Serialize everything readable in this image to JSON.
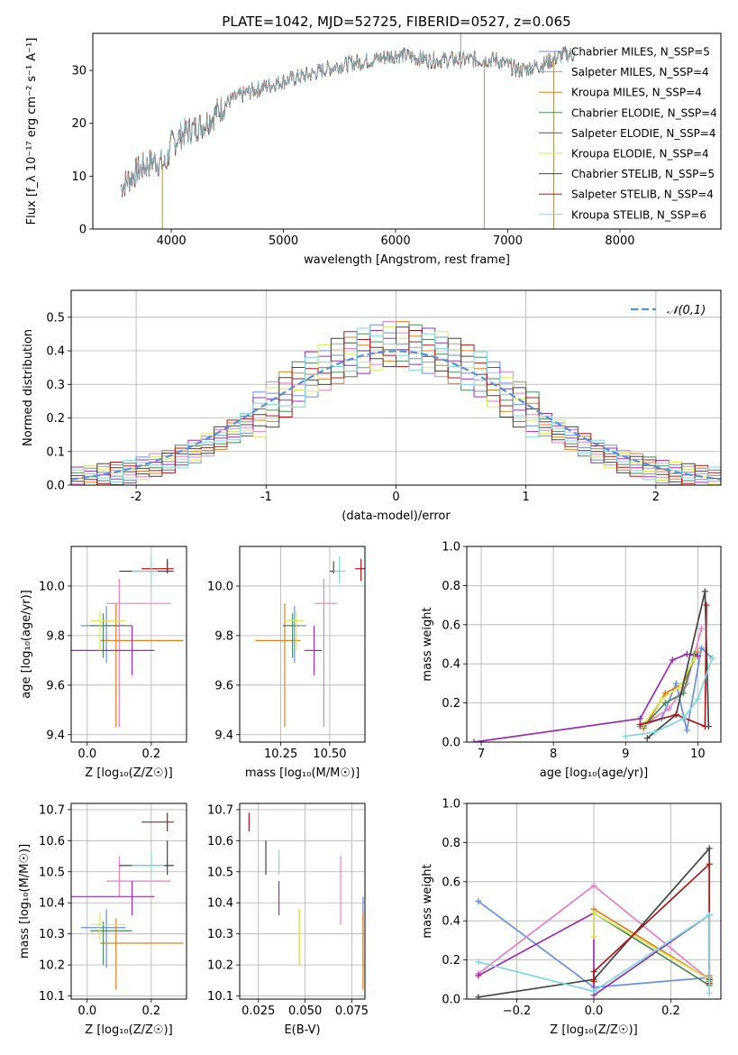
{
  "figure": {
    "title": "PLATE=1042, MJD=52725, FIBERID=0527, z=0.065"
  },
  "colors": {
    "Chabrier MILES": "#6b8fe0",
    "Salpeter MILES": "#e67fc4",
    "Kroupa MILES": "#e0801a",
    "Chabrier ELODIE": "#4a8a5a",
    "Salpeter ELODIE": "#9a2db0",
    "Kroupa ELODIE": "#d8ea5a",
    "Chabrier STELIB": "#444444",
    "Salpeter STELIB": "#b01818",
    "Kroupa STELIB": "#7fd6e0",
    "normal": "#5b8fd8"
  },
  "chart_data": [
    {
      "id": "spectrum",
      "type": "line",
      "xlabel": "wavelength [Angstrom, rest frame]",
      "ylabel": "Flux [f_λ 10⁻¹⁷ erg cm⁻² s⁻¹ A⁻¹]",
      "xlim": [
        3300,
        8900
      ],
      "ylim": [
        0,
        37
      ],
      "xticks": [
        "4000",
        "5000",
        "6000",
        "7000",
        "8000"
      ],
      "yticks": [
        "0",
        "10",
        "20",
        "30"
      ],
      "legend_position": "right",
      "legend": [
        "Chabrier MILES, N_SSP=5",
        "Salpeter MILES, N_SSP=4",
        "Kroupa MILES, N_SSP=4",
        "Chabrier ELODIE, N_SSP=4",
        "Salpeter ELODIE, N_SSP=4",
        "Kroupa ELODIE, N_SSP=4",
        "Chabrier STELIB, N_SSP=5",
        "Salpeter STELIB, N_SSP=4",
        "Kroupa STELIB, N_SSP=6"
      ],
      "continuum": {
        "x": [
          3550,
          3700,
          3850,
          3950,
          4000,
          4100,
          4300,
          4500,
          4700,
          5000,
          5200,
          5500,
          5800,
          6000,
          6300,
          6600,
          6900,
          7100,
          7300,
          7500,
          7600
        ],
        "y": [
          8,
          11,
          13,
          12,
          16,
          18,
          20,
          24,
          26,
          28,
          29,
          31,
          32,
          33,
          32,
          32,
          32,
          30,
          31,
          33,
          33
        ]
      },
      "spikes": [
        {
          "x": 3920,
          "y": 0
        },
        {
          "x": 6790,
          "y": 0
        },
        {
          "x": 7410,
          "y": 0
        },
        {
          "x": 6580,
          "y": 37
        }
      ]
    },
    {
      "id": "residuals",
      "type": "histogram",
      "xlabel": "(data-model)/error",
      "ylabel": "Normed distribution",
      "xlim": [
        -2.5,
        2.5
      ],
      "ylim": [
        0,
        0.58
      ],
      "xticks": [
        -2,
        -1,
        0,
        1,
        2
      ],
      "yticks": [
        0.0,
        0.1,
        0.2,
        0.3,
        0.4,
        0.5
      ],
      "grid": true,
      "legend": [
        "𝒩(0,1)"
      ],
      "legend_position": "upper right",
      "bin_width": 0.1,
      "bin_start": -2.5,
      "envelope": [
        0.02,
        0.025,
        0.03,
        0.035,
        0.04,
        0.05,
        0.06,
        0.07,
        0.085,
        0.1,
        0.12,
        0.14,
        0.16,
        0.18,
        0.21,
        0.24,
        0.27,
        0.3,
        0.33,
        0.35,
        0.37,
        0.39,
        0.4,
        0.41,
        0.42,
        0.42,
        0.41,
        0.4,
        0.39,
        0.37,
        0.35,
        0.33,
        0.3,
        0.27,
        0.24,
        0.21,
        0.18,
        0.16,
        0.14,
        0.12,
        0.1,
        0.085,
        0.07,
        0.06,
        0.05,
        0.04,
        0.035,
        0.03,
        0.025,
        0.02
      ]
    },
    {
      "id": "age_vs_Z",
      "type": "errorbar",
      "xlabel": "Z [log₁₀(Z/Z☉)]",
      "ylabel": "age  [log₁₀(age/yr)]",
      "xlim": [
        -0.05,
        0.31
      ],
      "ylim": [
        9.37,
        10.16
      ],
      "xticks": [
        "0.0",
        "0.2"
      ],
      "yticks": [
        "9.4",
        "9.6",
        "9.8",
        "10.0"
      ],
      "grid": true,
      "points": [
        {
          "m": "Chabrier MILES",
          "x": 0.06,
          "y": 9.84,
          "xe": [
            0.08,
            0.06
          ],
          "ye": [
            0.15,
            0.08
          ]
        },
        {
          "m": "Salpeter MILES",
          "x": 0.1,
          "y": 9.93,
          "xe": [
            0.04,
            0.16
          ],
          "ye": [
            0.5,
            0.1
          ]
        },
        {
          "m": "Kroupa MILES",
          "x": 0.09,
          "y": 9.78,
          "xe": [
            0.05,
            0.21
          ],
          "ye": [
            0.35,
            0.15
          ]
        },
        {
          "m": "Chabrier ELODIE",
          "x": 0.05,
          "y": 9.84,
          "xe": [
            0.04,
            0.09
          ],
          "ye": [
            0.13,
            0.05
          ]
        },
        {
          "m": "Salpeter ELODIE",
          "x": 0.14,
          "y": 9.74,
          "xe": [
            0.19,
            0.07
          ],
          "ye": [
            0.1,
            0.1
          ]
        },
        {
          "m": "Kroupa ELODIE",
          "x": 0.04,
          "y": 9.86,
          "xe": [
            0.03,
            0.08
          ],
          "ye": [
            0.12,
            0.04
          ]
        },
        {
          "m": "Chabrier STELIB",
          "x": 0.25,
          "y": 10.06,
          "xe": [
            0.15,
            0.02
          ],
          "ye": [
            0.01,
            0.04
          ]
        },
        {
          "m": "Salpeter STELIB",
          "x": 0.25,
          "y": 10.07,
          "xe": [
            0.08,
            0.02
          ],
          "ye": [
            0.01,
            0.04
          ]
        },
        {
          "m": "Kroupa STELIB",
          "x": 0.2,
          "y": 10.06,
          "xe": [
            0.06,
            0.02
          ],
          "ye": [
            0.05,
            0.05
          ]
        }
      ]
    },
    {
      "id": "age_vs_mass",
      "type": "errorbar",
      "xlabel": "mass [log₁₀(M/M☉)]",
      "ylabel": "",
      "xlim": [
        10.04,
        10.68
      ],
      "ylim": [
        9.37,
        10.16
      ],
      "xticks": [
        "10.25",
        "10.50"
      ],
      "yticks": [
        "9.4",
        "9.6",
        "9.8",
        "10.0"
      ],
      "grid": true,
      "points": [
        {
          "m": "Chabrier MILES",
          "x": 10.32,
          "y": 9.84,
          "xe": [
            0.06,
            0.06
          ],
          "ye": [
            0.15,
            0.08
          ]
        },
        {
          "m": "Salpeter MILES",
          "x": 10.47,
          "y": 9.93,
          "xe": [
            0.05,
            0.07
          ],
          "ye": [
            0.5,
            0.1
          ]
        },
        {
          "m": "Kroupa MILES",
          "x": 10.27,
          "y": 9.78,
          "xe": [
            0.15,
            0.08
          ],
          "ye": [
            0.35,
            0.15
          ]
        },
        {
          "m": "Chabrier ELODIE",
          "x": 10.31,
          "y": 9.84,
          "xe": [
            0.05,
            0.03
          ],
          "ye": [
            0.13,
            0.05
          ]
        },
        {
          "m": "Salpeter ELODIE",
          "x": 10.42,
          "y": 9.74,
          "xe": [
            0.05,
            0.04
          ],
          "ye": [
            0.1,
            0.1
          ]
        },
        {
          "m": "Kroupa ELODIE",
          "x": 10.33,
          "y": 9.86,
          "xe": [
            0.05,
            0.04
          ],
          "ye": [
            0.12,
            0.04
          ]
        },
        {
          "m": "Chabrier STELIB",
          "x": 10.52,
          "y": 10.06,
          "xe": [
            0.02,
            0.03
          ],
          "ye": [
            0.01,
            0.04
          ]
        },
        {
          "m": "Salpeter STELIB",
          "x": 10.66,
          "y": 10.07,
          "xe": [
            0.03,
            0.03
          ],
          "ye": [
            0.05,
            0.04
          ]
        },
        {
          "m": "Kroupa STELIB",
          "x": 10.55,
          "y": 10.06,
          "xe": [
            0.03,
            0.03
          ],
          "ye": [
            0.05,
            0.06
          ]
        }
      ]
    },
    {
      "id": "weight_vs_age",
      "type": "line",
      "xlabel": "age  [log₁₀(age/yr)]",
      "ylabel": "mass weight",
      "xlim": [
        6.8,
        10.32
      ],
      "ylim": [
        0,
        1
      ],
      "xticks": [
        7,
        8,
        9,
        10
      ],
      "yticks": [
        0.0,
        0.2,
        0.4,
        0.6,
        0.8,
        1.0
      ],
      "grid": true,
      "series": [
        {
          "m": "Chabrier MILES",
          "x": [
            9.2,
            9.5,
            9.7,
            9.85,
            10.05,
            10.2
          ],
          "y": [
            0.08,
            0.12,
            0.3,
            0.06,
            0.48,
            0.43
          ]
        },
        {
          "m": "Salpeter MILES",
          "x": [
            9.25,
            9.6,
            9.85,
            10.05
          ],
          "y": [
            0.09,
            0.17,
            0.3,
            0.58
          ]
        },
        {
          "m": "Kroupa MILES",
          "x": [
            9.25,
            9.55,
            9.8,
            10.0
          ],
          "y": [
            0.07,
            0.25,
            0.3,
            0.46
          ]
        },
        {
          "m": "Chabrier ELODIE",
          "x": [
            9.25,
            9.55,
            9.8,
            9.95
          ],
          "y": [
            0.08,
            0.2,
            0.25,
            0.45
          ]
        },
        {
          "m": "Salpeter ELODIE",
          "x": [
            6.9,
            9.2,
            9.65,
            9.85,
            10.0
          ],
          "y": [
            0.0,
            0.12,
            0.42,
            0.45,
            0.44
          ]
        },
        {
          "m": "Kroupa ELODIE",
          "x": [
            9.25,
            9.5,
            9.75,
            9.95
          ],
          "y": [
            0.09,
            0.22,
            0.28,
            0.43
          ]
        },
        {
          "m": "Chabrier STELIB",
          "x": [
            9.3,
            9.7,
            10.1,
            10.15
          ],
          "y": [
            0.02,
            0.14,
            0.77,
            0.08
          ]
        },
        {
          "m": "Salpeter STELIB",
          "x": [
            9.2,
            9.7,
            10.1,
            10.12
          ],
          "y": [
            0.09,
            0.14,
            0.08,
            0.7
          ]
        },
        {
          "m": "Kroupa STELIB",
          "x": [
            9.0,
            9.4,
            9.8,
            10.0,
            10.2
          ],
          "y": [
            0.03,
            0.05,
            0.12,
            0.22,
            0.43
          ]
        }
      ]
    },
    {
      "id": "mass_vs_Z",
      "type": "errorbar",
      "xlabel": "Z [log₁₀(Z/Z☉)]",
      "ylabel": "mass [log₁₀(M/M☉)]",
      "xlim": [
        -0.05,
        0.31
      ],
      "ylim": [
        10.09,
        10.72
      ],
      "xticks": [
        "0.0",
        "0.2"
      ],
      "yticks": [
        "10.1",
        "10.2",
        "10.3",
        "10.4",
        "10.5",
        "10.6",
        "10.7"
      ],
      "grid": true,
      "points": [
        {
          "m": "Chabrier MILES",
          "x": 0.06,
          "y": 10.32,
          "xe": [
            0.08,
            0.06
          ],
          "ye": [
            0.13,
            0.06
          ]
        },
        {
          "m": "Salpeter MILES",
          "x": 0.1,
          "y": 10.47,
          "xe": [
            0.04,
            0.16
          ],
          "ye": [
            0.05,
            0.08
          ]
        },
        {
          "m": "Kroupa MILES",
          "x": 0.09,
          "y": 10.27,
          "xe": [
            0.05,
            0.21
          ],
          "ye": [
            0.15,
            0.08
          ]
        },
        {
          "m": "Chabrier ELODIE",
          "x": 0.05,
          "y": 10.31,
          "xe": [
            0.04,
            0.09
          ],
          "ye": [
            0.11,
            0.03
          ]
        },
        {
          "m": "Salpeter ELODIE",
          "x": 0.14,
          "y": 10.42,
          "xe": [
            0.19,
            0.07
          ],
          "ye": [
            0.06,
            0.05
          ]
        },
        {
          "m": "Kroupa ELODIE",
          "x": 0.04,
          "y": 10.33,
          "xe": [
            0.03,
            0.08
          ],
          "ye": [
            0.05,
            0.04
          ]
        },
        {
          "m": "Chabrier STELIB",
          "x": 0.25,
          "y": 10.52,
          "xe": [
            0.15,
            0.02
          ],
          "ye": [
            0.03,
            0.08
          ]
        },
        {
          "m": "Salpeter STELIB",
          "x": 0.25,
          "y": 10.66,
          "xe": [
            0.08,
            0.02
          ],
          "ye": [
            0.03,
            0.03
          ]
        },
        {
          "m": "Kroupa STELIB",
          "x": 0.2,
          "y": 10.52,
          "xe": [
            0.06,
            0.04
          ],
          "ye": [
            0.03,
            0.04
          ]
        }
      ]
    },
    {
      "id": "mass_vs_ebv",
      "type": "errorbar",
      "xlabel": "E(B-V)",
      "ylabel": "",
      "xlim": [
        0.015,
        0.082
      ],
      "ylim": [
        10.09,
        10.72
      ],
      "xticks": [
        "0.025",
        "0.050",
        "0.075"
      ],
      "yticks": [
        "10.1",
        "10.2",
        "10.3",
        "10.4",
        "10.5",
        "10.6",
        "10.7"
      ],
      "grid": true,
      "points": [
        {
          "m": "Chabrier MILES",
          "x": 0.081,
          "y": 10.32,
          "xe": [
            0,
            0
          ],
          "ye": [
            0.13,
            0.1
          ]
        },
        {
          "m": "Salpeter MILES",
          "x": 0.069,
          "y": 10.47,
          "xe": [
            0,
            0
          ],
          "ye": [
            0.14,
            0.08
          ]
        },
        {
          "m": "Kroupa MILES",
          "x": 0.081,
          "y": 10.27,
          "xe": [
            0,
            0
          ],
          "ye": [
            0.15,
            0.1
          ]
        },
        {
          "m": "Chabrier ELODIE",
          "x": 0.047,
          "y": 10.31,
          "xe": [
            0,
            0
          ],
          "ye": [
            0.11,
            0.07
          ]
        },
        {
          "m": "Salpeter ELODIE",
          "x": 0.036,
          "y": 10.42,
          "xe": [
            0,
            0
          ],
          "ye": [
            0.06,
            0.05
          ]
        },
        {
          "m": "Kroupa ELODIE",
          "x": 0.047,
          "y": 10.3,
          "xe": [
            0,
            0
          ],
          "ye": [
            0.1,
            0.08
          ]
        },
        {
          "m": "Chabrier STELIB",
          "x": 0.029,
          "y": 10.55,
          "xe": [
            0,
            0
          ],
          "ye": [
            0.06,
            0.05
          ]
        },
        {
          "m": "Salpeter STELIB",
          "x": 0.02,
          "y": 10.66,
          "xe": [
            0,
            0
          ],
          "ye": [
            0.03,
            0.03
          ]
        },
        {
          "m": "Kroupa STELIB",
          "x": 0.036,
          "y": 10.52,
          "xe": [
            0,
            0
          ],
          "ye": [
            0.03,
            0.05
          ]
        }
      ]
    },
    {
      "id": "weight_vs_Z",
      "type": "line",
      "xlabel": "Z [log₁₀(Z/Z☉)]",
      "ylabel": "mass weight",
      "xlim": [
        -0.33,
        0.33
      ],
      "ylim": [
        0,
        1
      ],
      "xticks": [
        "−0.2",
        "0.0",
        "0.2"
      ],
      "xtick_values": [
        -0.2,
        0.0,
        0.2
      ],
      "yticks": [
        0.0,
        0.2,
        0.4,
        0.6,
        0.8,
        1.0
      ],
      "grid": true,
      "series": [
        {
          "m": "Chabrier MILES",
          "x": [
            -0.3,
            0.0,
            0.3,
            0.3
          ],
          "y": [
            0.5,
            0.06,
            0.11,
            0.43
          ]
        },
        {
          "m": "Salpeter MILES",
          "x": [
            -0.3,
            0.0,
            0.3
          ],
          "y": [
            0.13,
            0.58,
            0.1
          ]
        },
        {
          "m": "Kroupa MILES",
          "x": [
            0.0,
            0.3,
            0.3
          ],
          "y": [
            0.46,
            0.1,
            0.12
          ]
        },
        {
          "m": "Chabrier ELODIE",
          "x": [
            0.0,
            0.3,
            0.3
          ],
          "y": [
            0.44,
            0.07,
            0.09
          ]
        },
        {
          "m": "Salpeter ELODIE",
          "x": [
            -0.3,
            0.0,
            0.0,
            0.3
          ],
          "y": [
            0.12,
            0.44,
            0.02,
            0.43
          ]
        },
        {
          "m": "Kroupa ELODIE",
          "x": [
            0.0,
            0.0,
            0.3
          ],
          "y": [
            0.32,
            0.44,
            0.1
          ]
        },
        {
          "m": "Chabrier STELIB",
          "x": [
            -0.3,
            0.0,
            0.3,
            0.3
          ],
          "y": [
            0.01,
            0.1,
            0.77,
            0.1
          ]
        },
        {
          "m": "Salpeter STELIB",
          "x": [
            0.0,
            0.0,
            0.3,
            0.3
          ],
          "y": [
            0.09,
            0.14,
            0.69,
            0.08
          ]
        },
        {
          "m": "Kroupa STELIB",
          "x": [
            -0.3,
            0.0,
            0.3,
            0.3
          ],
          "y": [
            0.19,
            0.04,
            0.43,
            0.03
          ]
        }
      ]
    }
  ]
}
